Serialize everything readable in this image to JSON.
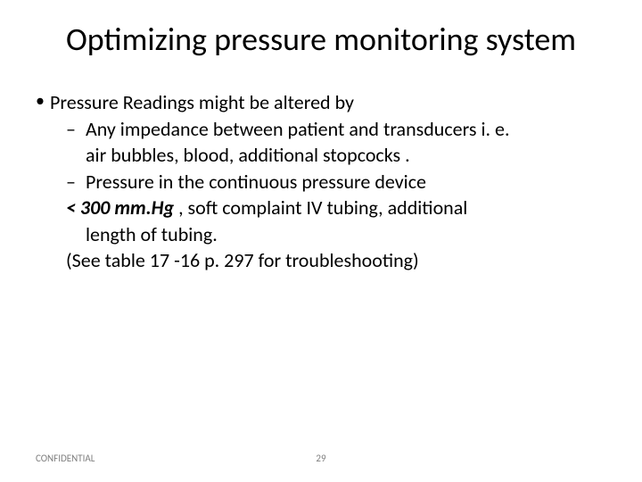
{
  "slide": {
    "title": "Optimizing pressure monitoring system",
    "bullet_main": "Pressure Readings might be altered by",
    "sub1_line1": "Any impedance between patient and transducers i. e.",
    "sub1_line2": "air bubbles, blood, additional stopcocks .",
    "sub2_line1": "Pressure in the continuous pressure device",
    "sub2_line2_bold": "< 300 mm.Hg",
    "sub2_line2_rest": " , soft complaint IV tubing, additional",
    "sub2_line3": "length of tubing.",
    "note": "(See table 17 -16 p. 297 for troubleshooting)"
  },
  "footer": {
    "confidential": "CONFIDENTIAL",
    "page_number": "29"
  },
  "style": {
    "background_color": "#ffffff",
    "text_color": "#000000",
    "footer_color": "#808080",
    "title_fontsize": 36,
    "body_fontsize": 22,
    "footer_fontsize": 11
  }
}
